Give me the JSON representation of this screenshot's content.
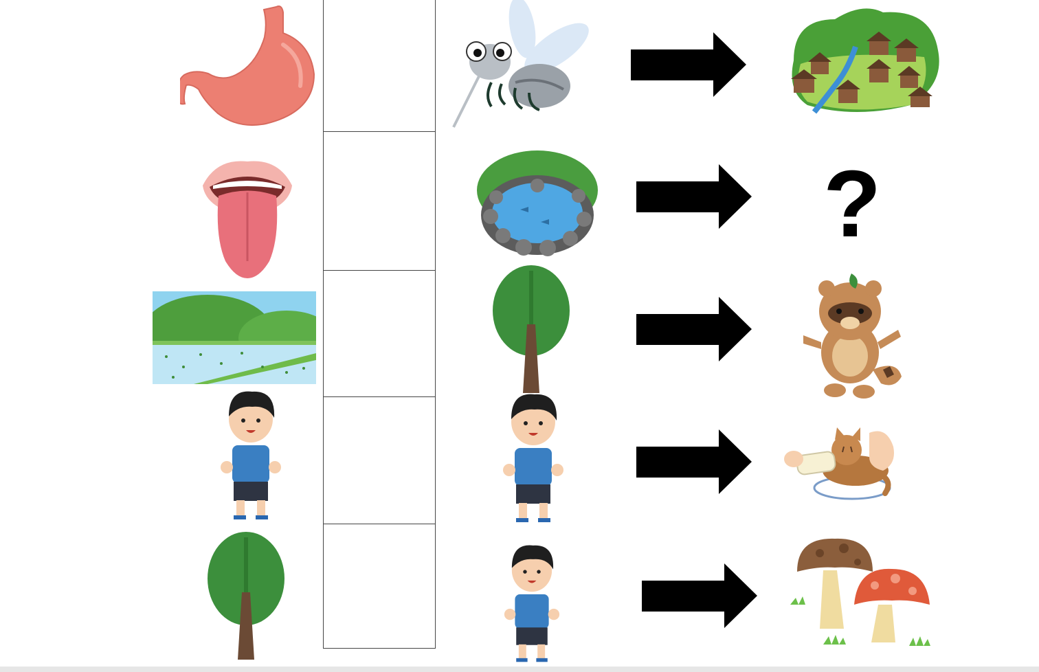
{
  "answer_column": {
    "cells": 5
  },
  "left_column": [
    {
      "icon": "stomach-icon"
    },
    {
      "icon": "tongue-icon"
    },
    {
      "icon": "rice-paddy-landscape-icon"
    },
    {
      "icon": "boy-icon"
    },
    {
      "icon": "tree-icon"
    }
  ],
  "middle_column": [
    {
      "icon": "mosquito-icon"
    },
    {
      "icon": "pond-icon"
    },
    {
      "icon": "tree-icon"
    },
    {
      "icon": "boy-icon"
    },
    {
      "icon": "boy-icon"
    }
  ],
  "right_column": [
    {
      "icon": "village-icon"
    },
    {
      "icon": "question-mark",
      "text": "?"
    },
    {
      "icon": "tanuki-icon"
    },
    {
      "icon": "kitten-bottle-feeding-icon"
    },
    {
      "icon": "mushrooms-icon"
    }
  ],
  "colors": {
    "arrow": "#000000",
    "cell_border": "#444444",
    "stomach": "#ec7f72",
    "tongue": "#e8707b",
    "tree_green": "#3c8f3c",
    "trunk": "#6b4a35",
    "shirt": "#3a7fc2",
    "shorts": "#2e3442"
  }
}
